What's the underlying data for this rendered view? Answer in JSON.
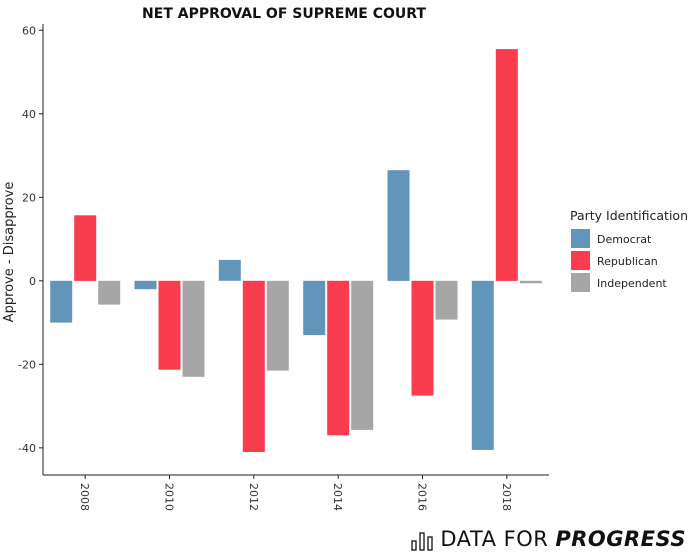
{
  "chart_data": {
    "type": "bar",
    "title": "NET APPROVAL OF SUPREME COURT",
    "xlabel": "",
    "ylabel": "Approve - Disapprove",
    "categories": [
      "2008",
      "2010",
      "2012",
      "2014",
      "2016",
      "2018"
    ],
    "series": [
      {
        "name": "Democrat",
        "color": "#6196BA",
        "values": [
          -10,
          -2,
          5,
          -13,
          26.5,
          -40.5
        ]
      },
      {
        "name": "Republican",
        "color": "#F93C4E",
        "values": [
          15.7,
          -21.3,
          -41,
          -37,
          -27.5,
          55.5
        ]
      },
      {
        "name": "Independent",
        "color": "#A6A6A6",
        "values": [
          -5.7,
          -23,
          -21.5,
          -35.7,
          -9.3,
          -0.6
        ]
      }
    ],
    "ylim": [
      -46.5,
      61.5
    ],
    "yticks": [
      -40,
      -20,
      0,
      20,
      40,
      60
    ],
    "legend": {
      "title": "Party Identification",
      "position": "right"
    },
    "grid": false
  },
  "branding": {
    "light": "DATA FOR",
    "bold": "PROGRESS"
  }
}
